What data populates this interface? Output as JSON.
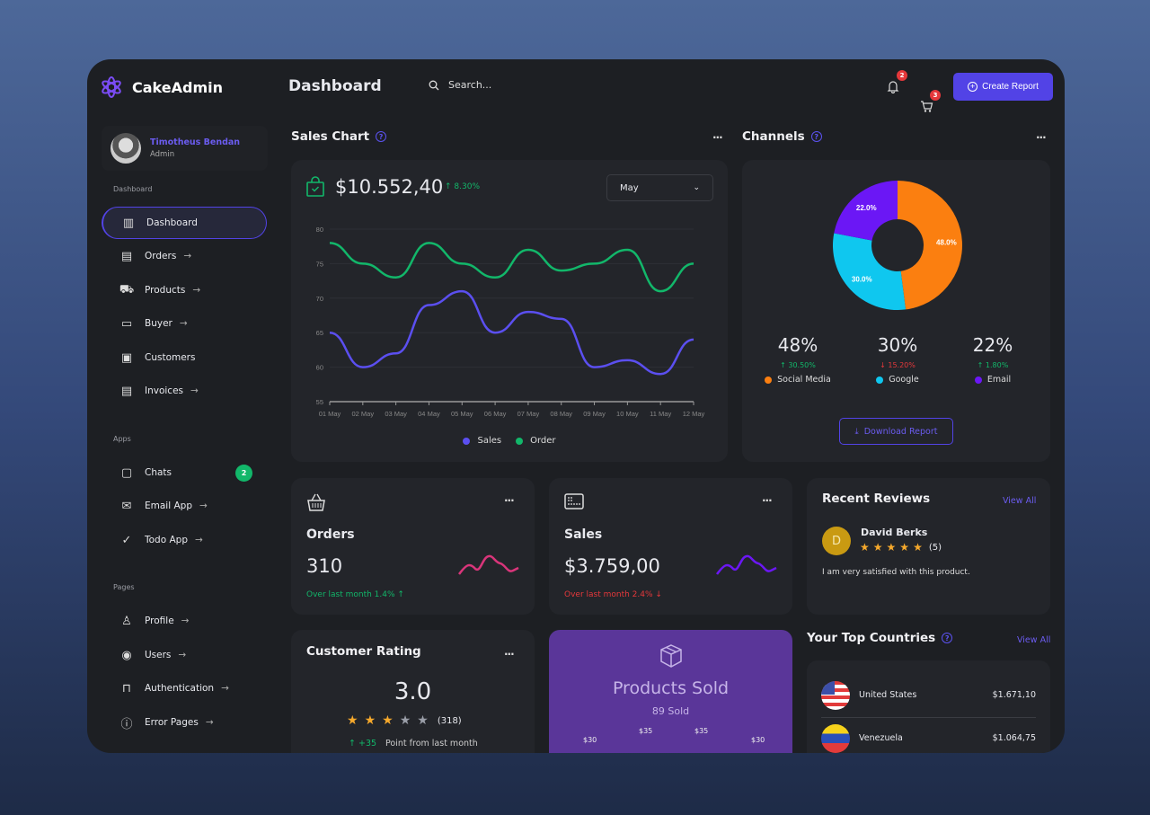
{
  "app": {
    "name": "CakeAdmin",
    "page_title": "Dashboard",
    "search_placeholder": "Search...",
    "notifications": "2",
    "cart": "3",
    "create_report": "Create Report",
    "accent": "#5243e6"
  },
  "user": {
    "name": "Timotheus Bendan",
    "role": "Admin"
  },
  "sidebar": {
    "sections": [
      "Dashboard",
      "Apps",
      "Pages"
    ],
    "items": [
      {
        "label": "Dashboard",
        "icon": "bar-chart-icon",
        "active": true
      },
      {
        "label": "Orders",
        "icon": "list-icon"
      },
      {
        "label": "Products",
        "icon": "truck-icon"
      },
      {
        "label": "Buyer",
        "icon": "wallet-icon"
      },
      {
        "label": "Customers",
        "icon": "contact-icon"
      },
      {
        "label": "Invoices",
        "icon": "invoice-icon"
      },
      {
        "label": "Chats",
        "icon": "chat-icon",
        "badge": "2"
      },
      {
        "label": "Email App",
        "icon": "mail-icon"
      },
      {
        "label": "Todo App",
        "icon": "check-circle-icon"
      },
      {
        "label": "Profile",
        "icon": "person-icon"
      },
      {
        "label": "Users",
        "icon": "user-circle-icon"
      },
      {
        "label": "Authentication",
        "icon": "lock-icon"
      },
      {
        "label": "Error Pages",
        "icon": "alert-icon"
      }
    ]
  },
  "sales_chart": {
    "title": "Sales Chart",
    "total": "$10.552,40",
    "change": "8.30%",
    "period": "May"
  },
  "chart_data": {
    "type": "line",
    "categories": [
      "01 May",
      "02 May",
      "03 May",
      "04 May",
      "05 May",
      "06 May",
      "07 May",
      "08 May",
      "09 May",
      "10 May",
      "11 May",
      "12 May"
    ],
    "series": [
      {
        "name": "Sales",
        "color": "#5b4ff0",
        "values": [
          65,
          60,
          62,
          69,
          71,
          65,
          68,
          67,
          60,
          61,
          59,
          64
        ]
      },
      {
        "name": "Order",
        "color": "#12b76a",
        "values": [
          78,
          75,
          73,
          78,
          75,
          73,
          77,
          74,
          75,
          77,
          71,
          75
        ]
      }
    ],
    "ylim": [
      55,
      80
    ],
    "yticks": [
      55,
      60,
      65,
      70,
      75,
      80
    ],
    "grid": true,
    "legend": "bottom"
  },
  "channels": {
    "title": "Channels",
    "slices": [
      {
        "name": "Social Media",
        "pct": 48,
        "label": "48.0%",
        "display": "48%",
        "change": "30.50%",
        "dir": "up",
        "color": "#fb7f10"
      },
      {
        "name": "Google",
        "pct": 30,
        "label": "30.0%",
        "display": "30%",
        "change": "15.20%",
        "dir": "down",
        "color": "#0fc7ef"
      },
      {
        "name": "Email",
        "pct": 22,
        "label": "22.0%",
        "display": "22%",
        "change": "1.80%",
        "dir": "up",
        "color": "#6b17f5"
      }
    ],
    "download": "Download Report"
  },
  "orders": {
    "title": "Orders",
    "value": "310",
    "note": "Over last month 1.4% ↑",
    "color": "#d9357a"
  },
  "sales": {
    "title": "Sales",
    "value": "$3.759,00",
    "note": "Over last month 2.4% ↓",
    "color": "#6b17f5"
  },
  "reviews": {
    "title": "Recent Reviews",
    "view_all": "View All",
    "name": "David Berks",
    "initial": "D",
    "rating": 5,
    "count": "(5)",
    "text": "I am very satisfied with this product."
  },
  "rating": {
    "title": "Customer Rating",
    "value": "3.0",
    "stars": 3,
    "count": "(318)",
    "delta": "+35",
    "note": "Point from last month"
  },
  "products_sold": {
    "title": "Products Sold",
    "sub": "89 Sold",
    "prices": [
      "$30",
      "$35",
      "$35",
      "$30"
    ]
  },
  "countries": {
    "title": "Your Top Countries",
    "view_all": "View All",
    "items": [
      {
        "name": "United States",
        "value": "$1.671,10"
      },
      {
        "name": "Venezuela",
        "value": "$1.064,75"
      }
    ]
  }
}
